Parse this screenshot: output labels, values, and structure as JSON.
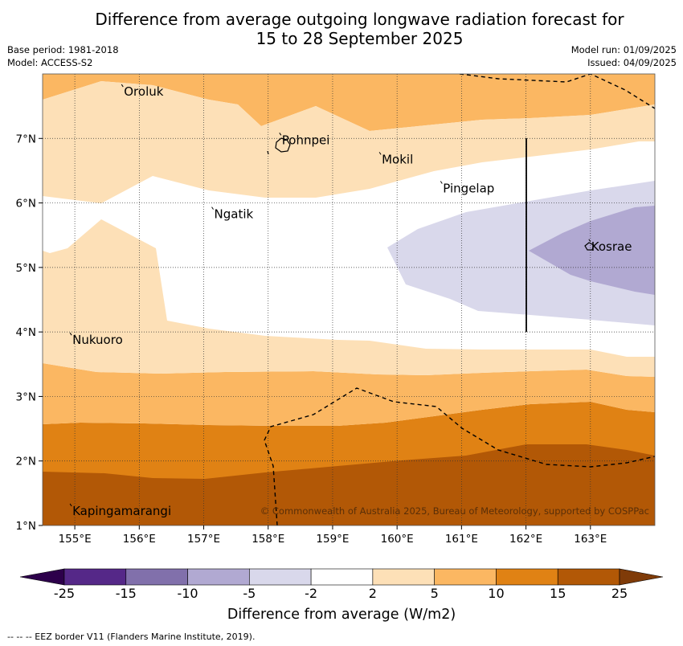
{
  "title_line1": "Difference from average outgoing longwave radiation forecast for",
  "title_line2": "15 to 28 September 2025",
  "base_period": "Base period: 1981-2018",
  "model": "Model: ACCESS-S2",
  "model_run": "Model run: 01/09/2025",
  "issued": "Issued: 04/09/2025",
  "copyright": "© Commonwealth of Australia 2025, Bureau of Meteorology, supported by COSPPac",
  "eez_note": "--  --  -- EEZ border V11 (Flanders Marine Institute, 2019).",
  "lon_labels": [
    "155°E",
    "156°E",
    "157°E",
    "158°E",
    "159°E",
    "160°E",
    "161°E",
    "162°E",
    "163°E"
  ],
  "lat_labels": [
    "1°N",
    "2°N",
    "3°N",
    "4°N",
    "5°N",
    "6°N",
    "7°N"
  ],
  "places": [
    {
      "name": "Oroluk",
      "lon": 155.75,
      "lat": 7.7
    },
    {
      "name": "Pohnpei",
      "lon": 158.2,
      "lat": 6.95
    },
    {
      "name": "Mokil",
      "lon": 159.75,
      "lat": 6.65
    },
    {
      "name": "Pingelap",
      "lon": 160.7,
      "lat": 6.2
    },
    {
      "name": "Ngatik",
      "lon": 157.15,
      "lat": 5.8
    },
    {
      "name": "Kosrae",
      "lon": 163.0,
      "lat": 5.3
    },
    {
      "name": "Nukuoro",
      "lon": 154.95,
      "lat": 3.85
    },
    {
      "name": "Kapingamarangi",
      "lon": 154.95,
      "lat": 1.2
    }
  ],
  "colorbar": {
    "title": "Difference from average (W/m2)",
    "levels": [
      "-25",
      "-15",
      "-10",
      "-5",
      "-2",
      "2",
      "5",
      "10",
      "15",
      "25"
    ],
    "colors": [
      "#552888",
      "#8170ab",
      "#b1a9d2",
      "#d9d8eb",
      "#ffffff",
      "#fde0b7",
      "#fbb762",
      "#e08214",
      "#b25806"
    ],
    "low_extend_color": "#2d004b",
    "high_extend_color": "#7f3b08"
  }
}
